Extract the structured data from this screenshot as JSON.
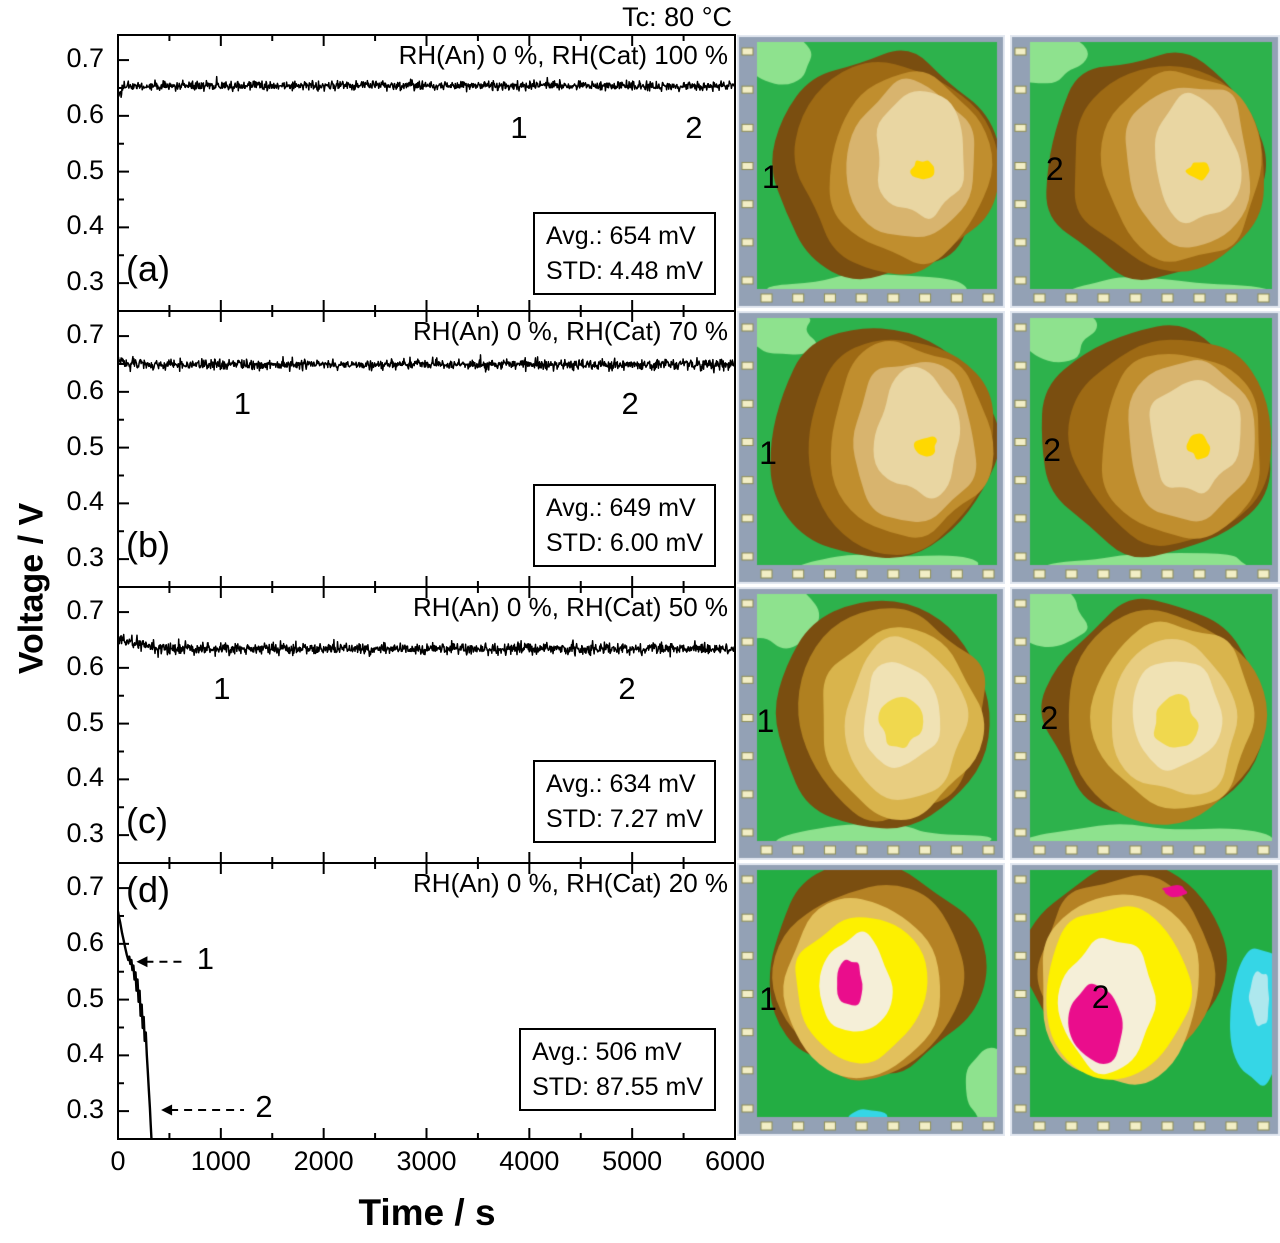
{
  "chart_data": {
    "type": "line",
    "figure": {
      "title": "Tc: 80 °C",
      "y_axis_label": "Voltage / V",
      "x_axis_label": "Time / s",
      "x_ticks": [
        "0",
        "1000",
        "2000",
        "3000",
        "4000",
        "5000",
        "6000"
      ],
      "y_ticks": [
        "0.7",
        "0.6",
        "0.5",
        "0.4",
        "0.3"
      ],
      "x_range": [
        0,
        6000
      ],
      "y_range": [
        0.25,
        0.745
      ]
    },
    "panels": [
      {
        "id": "a",
        "panel_label": "(a)",
        "rh_label": "RH(An) 0 %, RH(Cat) 100 %",
        "avg_mV": 654,
        "std_mV": 4.48,
        "stats": {
          "avg": "Avg.: 654 mV",
          "std": "STD: 4.48 mV"
        },
        "series": {
          "type": "flat",
          "avg_V": 0.654,
          "std_V": 0.0042,
          "start": [
            [
              0,
              0.637
            ],
            [
              30,
              0.647
            ],
            [
              70,
              0.653
            ],
            [
              120,
              0.654
            ]
          ]
        },
        "annotations": [
          {
            "text": "1",
            "t": 3900,
            "v": 0.573
          },
          {
            "text": "2",
            "t": 5600,
            "v": 0.573
          }
        ],
        "label_corner": "bottom-left"
      },
      {
        "id": "b",
        "panel_label": "(b)",
        "rh_label": "RH(An) 0 %, RH(Cat) 70 %",
        "avg_mV": 649,
        "std_mV": 6.0,
        "stats": {
          "avg": "Avg.: 649 mV",
          "std": "STD: 6.00 mV"
        },
        "series": {
          "type": "flat",
          "avg_V": 0.649,
          "std_V": 0.0046,
          "start": [
            [
              0,
              0.655
            ],
            [
              100,
              0.651
            ]
          ]
        },
        "annotations": [
          {
            "text": "1",
            "t": 1210,
            "v": 0.573
          },
          {
            "text": "2",
            "t": 4980,
            "v": 0.573
          }
        ],
        "label_corner": "bottom-left"
      },
      {
        "id": "c",
        "panel_label": "(c)",
        "rh_label": "RH(An) 0 %, RH(Cat) 50 %",
        "avg_mV": 634,
        "std_mV": 7.27,
        "stats": {
          "avg": "Avg.: 634 mV",
          "std": "STD: 7.27 mV"
        },
        "series": {
          "type": "flat",
          "avg_V": 0.634,
          "std_V": 0.005,
          "start": [
            [
              0,
              0.652
            ],
            [
              150,
              0.645
            ],
            [
              400,
              0.636
            ]
          ]
        },
        "annotations": [
          {
            "text": "1",
            "t": 1010,
            "v": 0.556
          },
          {
            "text": "2",
            "t": 4950,
            "v": 0.556
          }
        ],
        "label_corner": "bottom-left"
      },
      {
        "id": "d",
        "panel_label": "(d)",
        "rh_label": "RH(An) 0 %, RH(Cat) 20 %",
        "avg_mV": 506,
        "std_mV": 87.55,
        "stats": {
          "avg": "Avg.: 506 mV",
          "std": "STD: 87.55 mV"
        },
        "series": {
          "type": "points",
          "points": [
            [
              0,
              0.658
            ],
            [
              10,
              0.648
            ],
            [
              20,
              0.639
            ],
            [
              30,
              0.629
            ],
            [
              40,
              0.619
            ],
            [
              55,
              0.606
            ],
            [
              70,
              0.593
            ],
            [
              85,
              0.581
            ],
            [
              100,
              0.571
            ],
            [
              110,
              0.577
            ],
            [
              120,
              0.564
            ],
            [
              130,
              0.571
            ],
            [
              140,
              0.553
            ],
            [
              150,
              0.561
            ],
            [
              160,
              0.536
            ],
            [
              170,
              0.549
            ],
            [
              180,
              0.516
            ],
            [
              190,
              0.536
            ],
            [
              200,
              0.496
            ],
            [
              210,
              0.516
            ],
            [
              220,
              0.471
            ],
            [
              230,
              0.491
            ],
            [
              240,
              0.449
            ],
            [
              250,
              0.469
            ],
            [
              260,
              0.426
            ],
            [
              270,
              0.441
            ],
            [
              280,
              0.401
            ],
            [
              290,
              0.371
            ],
            [
              300,
              0.339
            ],
            [
              310,
              0.306
            ],
            [
              318,
              0.276
            ],
            [
              326,
              0.249
            ],
            [
              332,
              0.228
            ]
          ]
        },
        "annotations": [
          {
            "text": "1",
            "t": 850,
            "v": 0.568,
            "arrow_target_t": 150
          },
          {
            "text": "2",
            "t": 1420,
            "v": 0.302,
            "arrow_target_t": 390
          }
        ],
        "label_corner": "top-left"
      }
    ],
    "heatmaps": {
      "rows": [
        {
          "maps": [
            {
              "label": "1",
              "preset": "wet",
              "lx": 0.13,
              "ly": 0.53
            },
            {
              "label": "2",
              "preset": "wet",
              "lx": 0.17,
              "ly": 0.5
            }
          ]
        },
        {
          "maps": [
            {
              "label": "1",
              "preset": "wet",
              "lx": 0.12,
              "ly": 0.53
            },
            {
              "label": "2",
              "preset": "wet",
              "lx": 0.16,
              "ly": 0.52
            }
          ]
        },
        {
          "maps": [
            {
              "label": "1",
              "preset": "mid",
              "lx": 0.11,
              "ly": 0.5
            },
            {
              "label": "2",
              "preset": "mid",
              "lx": 0.15,
              "ly": 0.49
            }
          ]
        },
        {
          "maps": [
            {
              "label": "1",
              "preset": "fail1",
              "lx": 0.12,
              "ly": 0.51
            },
            {
              "label": "2",
              "preset": "fail2",
              "lx": 0.34,
              "ly": 0.5
            }
          ]
        }
      ],
      "palettes": {
        "wet": [
          {
            "full": true,
            "c": "#2db24c"
          },
          {
            "c": "#8ee28e",
            "x": 0.07,
            "y": 0.05,
            "rx": 0.17,
            "ry": 0.11,
            "j": 0.3
          },
          {
            "c": "#8ee28e",
            "x": 0.5,
            "y": 1.02,
            "rx": 0.46,
            "ry": 0.07,
            "j": 0.25
          },
          {
            "c": "#7a4e10",
            "x": 0.52,
            "y": 0.5,
            "rx": 0.475,
            "ry": 0.465,
            "j": 0.1
          },
          {
            "c": "#9e6a14",
            "x": 0.58,
            "y": 0.5,
            "rx": 0.41,
            "ry": 0.435,
            "j": 0.1
          },
          {
            "c": "#c08e2e",
            "x": 0.63,
            "y": 0.5,
            "rx": 0.335,
            "ry": 0.395,
            "j": 0.12
          },
          {
            "c": "#d8b46e",
            "x": 0.66,
            "y": 0.49,
            "rx": 0.265,
            "ry": 0.335,
            "j": 0.14
          },
          {
            "c": "#e9d6a2",
            "x": 0.68,
            "y": 0.47,
            "rx": 0.185,
            "ry": 0.25,
            "j": 0.18
          },
          {
            "c": "#ffd800",
            "x": 0.7,
            "y": 0.52,
            "rx": 0.05,
            "ry": 0.045,
            "j": 0.3
          }
        ],
        "mid": [
          {
            "full": true,
            "c": "#2db24c"
          },
          {
            "c": "#8ee28e",
            "x": 0.06,
            "y": 0.07,
            "rx": 0.19,
            "ry": 0.14,
            "j": 0.3
          },
          {
            "c": "#8ee28e",
            "x": 0.5,
            "y": 1.02,
            "rx": 0.46,
            "ry": 0.08,
            "j": 0.25
          },
          {
            "c": "#7a4e10",
            "x": 0.52,
            "y": 0.48,
            "rx": 0.465,
            "ry": 0.455,
            "j": 0.1
          },
          {
            "c": "#b08020",
            "x": 0.57,
            "y": 0.49,
            "rx": 0.4,
            "ry": 0.425,
            "j": 0.11
          },
          {
            "c": "#d9b44c",
            "x": 0.6,
            "y": 0.5,
            "rx": 0.335,
            "ry": 0.385,
            "j": 0.12
          },
          {
            "c": "#e8cd80",
            "x": 0.61,
            "y": 0.5,
            "rx": 0.26,
            "ry": 0.32,
            "j": 0.14
          },
          {
            "c": "#f0e2b4",
            "x": 0.6,
            "y": 0.5,
            "rx": 0.175,
            "ry": 0.225,
            "j": 0.18
          },
          {
            "c": "#f0d84e",
            "x": 0.6,
            "y": 0.52,
            "rx": 0.085,
            "ry": 0.105,
            "j": 0.25
          }
        ],
        "fail1": [
          {
            "full": true,
            "c": "#23ad43"
          },
          {
            "c": "#8ee28e",
            "x": 0.97,
            "y": 0.88,
            "rx": 0.1,
            "ry": 0.16,
            "j": 0.25
          },
          {
            "c": "#7a4e10",
            "x": 0.48,
            "y": 0.4,
            "rx": 0.45,
            "ry": 0.42,
            "j": 0.11
          },
          {
            "c": "#b58224",
            "x": 0.46,
            "y": 0.44,
            "rx": 0.385,
            "ry": 0.4,
            "j": 0.11
          },
          {
            "c": "#e2c05c",
            "x": 0.44,
            "y": 0.47,
            "rx": 0.335,
            "ry": 0.365,
            "j": 0.12
          },
          {
            "c": "#fdf000",
            "x": 0.42,
            "y": 0.49,
            "rx": 0.28,
            "ry": 0.315,
            "j": 0.13
          },
          {
            "c": "#f5efd8",
            "x": 0.4,
            "y": 0.47,
            "rx": 0.165,
            "ry": 0.21,
            "j": 0.17
          },
          {
            "c": "#ea0d8c",
            "x": 0.385,
            "y": 0.46,
            "rx": 0.055,
            "ry": 0.095,
            "j": 0.22
          },
          {
            "c": "#35d6e6",
            "x": 0.46,
            "y": 1.01,
            "rx": 0.09,
            "ry": 0.04,
            "j": 0.2
          }
        ],
        "fail2": [
          {
            "full": true,
            "c": "#23ad43"
          },
          {
            "c": "#7a4e10",
            "x": 0.4,
            "y": 0.36,
            "rx": 0.42,
            "ry": 0.4,
            "j": 0.11
          },
          {
            "c": "#b58224",
            "x": 0.39,
            "y": 0.42,
            "rx": 0.38,
            "ry": 0.41,
            "j": 0.11
          },
          {
            "c": "#e2c05c",
            "x": 0.38,
            "y": 0.47,
            "rx": 0.345,
            "ry": 0.4,
            "j": 0.12
          },
          {
            "c": "#fdf000",
            "x": 0.36,
            "y": 0.51,
            "rx": 0.3,
            "ry": 0.37,
            "j": 0.12
          },
          {
            "c": "#f5efd8",
            "x": 0.32,
            "y": 0.54,
            "rx": 0.195,
            "ry": 0.27,
            "j": 0.15
          },
          {
            "c": "#ea0d8c",
            "x": 0.27,
            "y": 0.62,
            "rx": 0.115,
            "ry": 0.175,
            "j": 0.16
          },
          {
            "c": "#35d6e6",
            "x": 0.94,
            "y": 0.58,
            "rx": 0.12,
            "ry": 0.3,
            "j": 0.15
          },
          {
            "c": "#aee8ee",
            "x": 0.95,
            "y": 0.52,
            "rx": 0.045,
            "ry": 0.11,
            "j": 0.2
          },
          {
            "c": "#ea0d8c",
            "x": 0.6,
            "y": 0.085,
            "rx": 0.055,
            "ry": 0.022,
            "j": 0.3
          }
        ]
      },
      "colors": {
        "frame": "#93a1b5",
        "frame_edge": "#e4e9f1",
        "grid_bg": "#cbd0d8",
        "grid_line": "#ffffff",
        "tick_fill": "#f2eec6",
        "tick_edge": "#8d8d55"
      }
    }
  }
}
